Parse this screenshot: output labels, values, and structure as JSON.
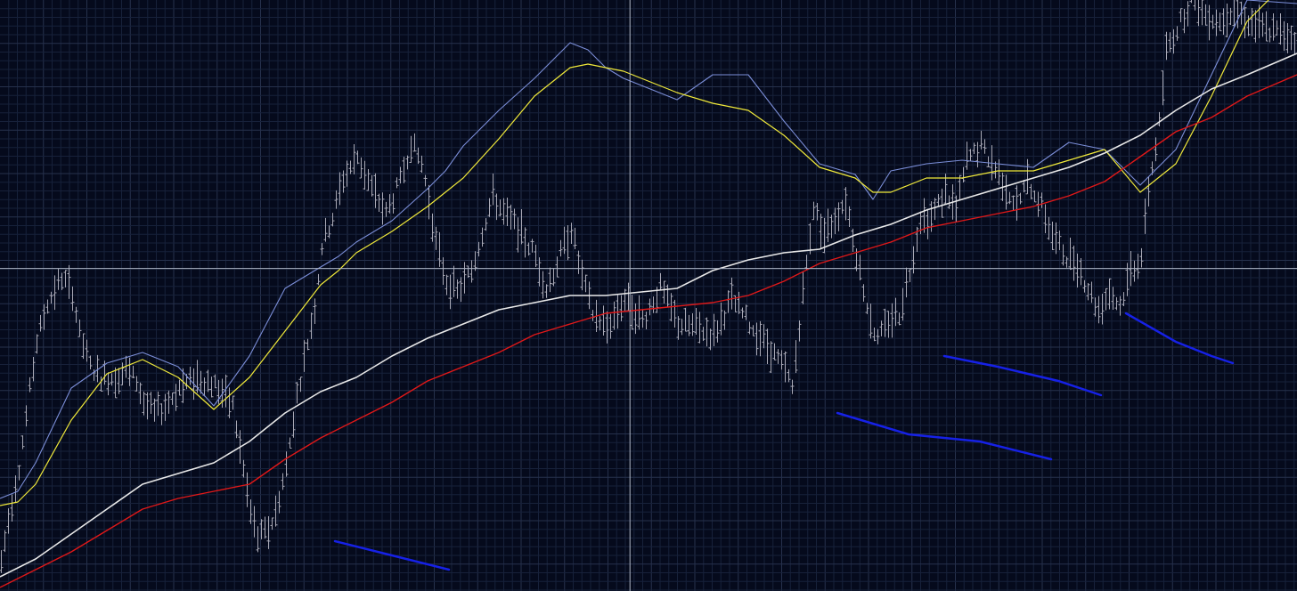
{
  "colors": {
    "background": "#050a1c",
    "grid_minor": "#17213a",
    "grid_major": "#26314c",
    "crosshair": "#aeb6c6",
    "price_bars": "#a9a9b6",
    "ma_fast": "#7b8ed8",
    "ma_mid": "#f0e93a",
    "ma_slow": "#e8e8e8",
    "ma_long": "#e01818",
    "trend_lines": "#1621e6"
  },
  "crosshair": {
    "x": 91.4,
    "y": 90.6
  },
  "chart_data": {
    "type": "line",
    "title": "",
    "xlabel": "",
    "ylabel": "",
    "xlim": [
      0,
      364
    ],
    "ylim": [
      0,
      166
    ],
    "grid": true,
    "legend": "none",
    "price_series": {
      "anchors_x": [
        0,
        2,
        5,
        8,
        10,
        13,
        17,
        20,
        22,
        25,
        28,
        32,
        35,
        38,
        40,
        43,
        46,
        50,
        55,
        60,
        65,
        70,
        72,
        75,
        77,
        80,
        83,
        85,
        88,
        90,
        93,
        96,
        100,
        104,
        108,
        112,
        115,
        118,
        120,
        122,
        125,
        128,
        132,
        135,
        138,
        141,
        145,
        150,
        153,
        156,
        160,
        163,
        166,
        170,
        175,
        180,
        185,
        190,
        195,
        200,
        205,
        210,
        215,
        220,
        222,
        225,
        228,
        231,
        234,
        237,
        240,
        243,
        246,
        249,
        252,
        255,
        258,
        261,
        265,
        268,
        271,
        275,
        280,
        285,
        288,
        290,
        292,
        295,
        298,
        302,
        305,
        308,
        311,
        314,
        317,
        320,
        322,
        325,
        327,
        330,
        334,
        338,
        342,
        346,
        350,
        354,
        358,
        362,
        364
      ],
      "anchors_y": [
        8,
        20,
        35,
        56,
        70,
        81,
        88,
        84,
        72,
        63,
        60,
        60,
        62,
        59,
        53,
        50,
        52,
        57,
        60,
        58,
        52,
        22,
        15,
        17,
        22,
        35,
        55,
        65,
        80,
        97,
        105,
        116,
        122,
        113,
        106,
        115,
        126,
        120,
        110,
        98,
        87,
        84,
        90,
        101,
        111,
        106,
        102,
        94,
        85,
        92,
        102,
        88,
        78,
        74,
        82,
        76,
        85,
        75,
        74,
        72,
        82,
        75,
        69,
        62,
        57,
        84,
        108,
        100,
        105,
        110,
        95,
        80,
        70,
        76,
        78,
        90,
        105,
        105,
        112,
        107,
        121,
        125,
        117,
        108,
        115,
        112,
        108,
        100,
        95,
        92,
        85,
        79,
        84,
        80,
        90,
        94,
        113,
        131,
        152,
        158,
        166,
        162,
        160,
        164,
        160,
        158,
        157,
        156,
        155
      ]
    },
    "series": [
      {
        "x": [
          0,
          5,
          10,
          20,
          30,
          40,
          50,
          60,
          70,
          80,
          90,
          95,
          100,
          110,
          120,
          125,
          130,
          140,
          150,
          160,
          165,
          170,
          175,
          180,
          190,
          200,
          210,
          220,
          230,
          240,
          245,
          250,
          260,
          270,
          280,
          290,
          300,
          310,
          320,
          330,
          340,
          350,
          364
        ],
        "y": [
          26,
          28,
          36,
          57,
          64,
          67,
          63,
          52,
          66,
          85,
          91,
          94,
          98,
          104,
          113,
          118,
          125,
          135,
          144,
          154,
          152,
          147,
          144,
          142,
          138,
          145,
          145,
          132,
          120,
          117,
          110,
          118,
          120,
          121,
          120,
          119,
          126,
          124,
          114,
          124,
          145,
          166,
          165
        ]
      },
      {
        "x": [
          0,
          5,
          10,
          20,
          30,
          40,
          50,
          60,
          70,
          80,
          90,
          95,
          100,
          110,
          120,
          125,
          130,
          140,
          150,
          160,
          165,
          170,
          175,
          180,
          190,
          200,
          210,
          220,
          230,
          240,
          245,
          250,
          260,
          270,
          280,
          290,
          300,
          310,
          320,
          330,
          340,
          350,
          364
        ],
        "y": [
          24,
          25,
          30,
          48,
          61,
          65,
          60,
          51,
          60,
          73,
          86,
          90,
          95,
          101,
          108,
          112,
          116,
          127,
          139,
          147,
          148,
          147,
          146,
          144,
          140,
          137,
          135,
          128,
          119,
          116,
          112,
          112,
          116,
          116,
          118,
          118,
          121,
          124,
          112,
          120,
          139,
          160,
          174
        ]
      },
      {
        "x": [
          0,
          10,
          20,
          30,
          40,
          50,
          60,
          70,
          80,
          90,
          100,
          110,
          120,
          130,
          140,
          150,
          160,
          170,
          180,
          190,
          200,
          210,
          220,
          230,
          240,
          250,
          260,
          270,
          280,
          290,
          300,
          310,
          320,
          330,
          340,
          350,
          364
        ],
        "y": [
          4,
          9,
          16,
          23,
          30,
          33,
          36,
          42,
          50,
          56,
          60,
          66,
          71,
          75,
          79,
          81,
          83,
          83,
          84,
          85,
          90,
          93,
          95,
          96,
          100,
          103,
          107,
          110,
          113,
          116,
          119,
          123,
          128,
          135,
          141,
          145,
          151
        ]
      },
      {
        "x": [
          0,
          10,
          20,
          30,
          40,
          50,
          60,
          70,
          80,
          90,
          100,
          110,
          120,
          130,
          140,
          150,
          160,
          170,
          180,
          190,
          200,
          210,
          220,
          230,
          240,
          250,
          260,
          270,
          280,
          290,
          300,
          310,
          320,
          330,
          340,
          350,
          364
        ],
        "y": [
          1,
          6,
          11,
          17,
          23,
          26,
          28,
          30,
          37,
          43,
          48,
          53,
          59,
          63,
          67,
          72,
          75,
          78,
          79,
          80,
          81,
          83,
          87,
          92,
          95,
          98,
          102,
          104,
          106,
          108,
          111,
          115,
          122,
          129,
          133,
          139,
          145
        ]
      }
    ],
    "trend_lines": [
      {
        "x": [
          94,
          110,
          126
        ],
        "y": [
          14,
          10,
          6
        ]
      },
      {
        "x": [
          235,
          255,
          275,
          295
        ],
        "y": [
          50,
          44,
          42,
          37
        ]
      },
      {
        "x": [
          265,
          280,
          297,
          309
        ],
        "y": [
          66,
          63,
          59,
          55
        ]
      },
      {
        "x": [
          316,
          330,
          340,
          346
        ],
        "y": [
          78,
          70,
          66,
          64
        ]
      }
    ]
  }
}
